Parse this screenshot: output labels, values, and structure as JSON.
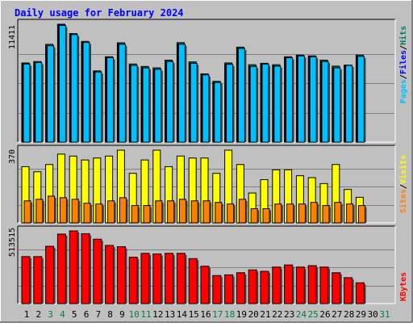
{
  "title": "Daily usage for February 2024",
  "colors": {
    "background": "#c0c0c0",
    "panel": "#c0c0c0",
    "title": "#0000ff",
    "grid": "#808080",
    "hits": "#008060",
    "files": "#0000ff",
    "pages": "#00c0ff",
    "visits": "#ffff00",
    "sites": "#ff8000",
    "kbytes": "#ff0000",
    "weekday": "#000000",
    "weekend": "#008040"
  },
  "chart_data": [
    {
      "type": "bar",
      "name": "hits-files-pages",
      "ymax_label": "11411",
      "ymax": 11411,
      "legend": [
        {
          "label": "Pages",
          "color": "#00c0ff"
        },
        {
          "label": "Files",
          "color": "#0000ff"
        },
        {
          "label": "Hits",
          "color": "#008060"
        }
      ],
      "categories": [
        "1",
        "2",
        "3",
        "4",
        "5",
        "6",
        "7",
        "8",
        "9",
        "10",
        "11",
        "12",
        "13",
        "14",
        "15",
        "16",
        "17",
        "18",
        "19",
        "20",
        "21",
        "22",
        "23",
        "24",
        "25",
        "26",
        "27",
        "28",
        "29",
        "30",
        "31"
      ],
      "series": [
        {
          "name": "Hits",
          "values": [
            7662,
            7798,
            9462,
            11411,
            10509,
            9747,
            6893,
            8267,
            9612,
            7560,
            7322,
            7187,
            7934,
            9628,
            7764,
            6607,
            5880,
            7664,
            9192,
            7492,
            7628,
            7492,
            8262,
            8424,
            8346,
            7935,
            7356,
            7458,
            8430,
            null,
            null
          ]
        },
        {
          "name": "Files",
          "values": [
            7560,
            7696,
            9326,
            11411,
            10407,
            9645,
            6791,
            8165,
            9476,
            7424,
            7186,
            7050,
            7798,
            9476,
            7628,
            6505,
            5778,
            7526,
            9066,
            7322,
            7560,
            7356,
            8160,
            8346,
            8262,
            7798,
            7186,
            7424,
            8300,
            null,
            null
          ]
        },
        {
          "name": "Pages",
          "values": [
            7560,
            7696,
            9326,
            11300,
            10407,
            9645,
            6791,
            8165,
            9476,
            7424,
            7186,
            7050,
            7798,
            9476,
            7628,
            6505,
            5778,
            7526,
            9066,
            7322,
            7560,
            7356,
            8160,
            8346,
            8262,
            7798,
            7186,
            7424,
            8300,
            null,
            null
          ]
        }
      ]
    },
    {
      "type": "bar",
      "name": "visits-sites",
      "ymax_label": "370",
      "ymax": 370,
      "legend": [
        {
          "label": "Sites",
          "color": "#ff8000"
        },
        {
          "label": "Visits",
          "color": "#ffff00"
        }
      ],
      "categories": [
        "1",
        "2",
        "3",
        "4",
        "5",
        "6",
        "7",
        "8",
        "9",
        "10",
        "11",
        "12",
        "13",
        "14",
        "15",
        "16",
        "17",
        "18",
        "19",
        "20",
        "21",
        "22",
        "23",
        "24",
        "25",
        "26",
        "27",
        "28",
        "29",
        "30",
        "31"
      ],
      "series": [
        {
          "name": "Visits",
          "values": [
            286,
            260,
            297,
            350,
            340,
            320,
            330,
            340,
            370,
            252,
            320,
            370,
            286,
            340,
            330,
            330,
            252,
            370,
            297,
            152,
            220,
            270,
            270,
            240,
            230,
            200,
            297,
            170,
            130,
            null,
            null
          ]
        },
        {
          "name": "Sites",
          "values": [
            112,
            120,
            136,
            128,
            120,
            100,
            96,
            112,
            128,
            88,
            88,
            112,
            112,
            120,
            112,
            112,
            104,
            96,
            120,
            72,
            72,
            96,
            96,
            96,
            104,
            88,
            104,
            96,
            88,
            null,
            null
          ]
        }
      ]
    },
    {
      "type": "bar",
      "name": "kbytes",
      "ymax_label": "513515",
      "ymax": 513515,
      "legend": [
        {
          "label": "KBytes",
          "color": "#ff0000"
        }
      ],
      "categories": [
        "1",
        "2",
        "3",
        "4",
        "5",
        "6",
        "7",
        "8",
        "9",
        "10",
        "11",
        "12",
        "13",
        "14",
        "15",
        "16",
        "17",
        "18",
        "19",
        "20",
        "21",
        "22",
        "23",
        "24",
        "25",
        "26",
        "27",
        "28",
        "29",
        "30",
        "31"
      ],
      "series": [
        {
          "name": "KBytes",
          "values": [
            332000,
            332000,
            405000,
            491000,
            513515,
            494000,
            455000,
            411000,
            402000,
            328000,
            355000,
            351000,
            355000,
            355000,
            318000,
            264000,
            198000,
            203000,
            218000,
            238000,
            228000,
            258000,
            273000,
            258000,
            268000,
            258000,
            218000,
            183000,
            147000,
            null,
            null
          ]
        }
      ]
    }
  ],
  "weekend_days": [
    "3",
    "4",
    "10",
    "11",
    "17",
    "18",
    "24",
    "25",
    "31"
  ]
}
